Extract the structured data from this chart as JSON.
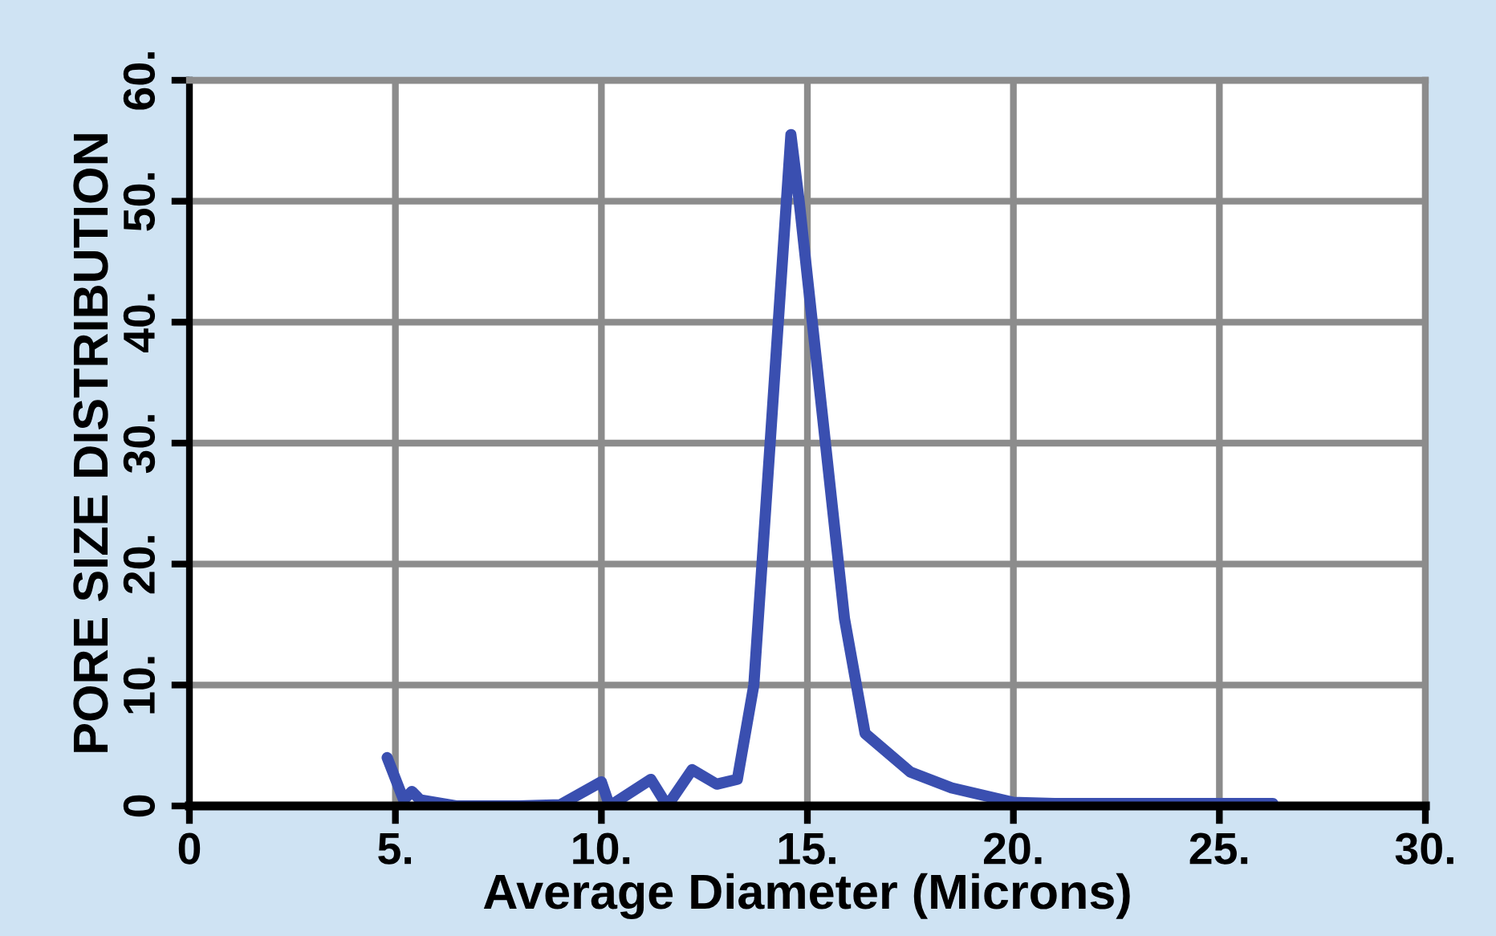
{
  "chart_data": {
    "type": "line",
    "xlabel": "Average Diameter (Microns)",
    "ylabel": "PORE SIZE DISTRIBUTION",
    "x": [
      4.8,
      5.2,
      5.4,
      5.6,
      6.5,
      8,
      9,
      10,
      10.2,
      11.2,
      11.6,
      12.2,
      12.8,
      13.3,
      13.7,
      14.6,
      14.8,
      15.9,
      16.4,
      17.5,
      18.5,
      20,
      21,
      26.3
    ],
    "series": [
      {
        "color": "#3a4fb0",
        "values": [
          4,
          0.5,
          1.2,
          0.5,
          0,
          0,
          0.1,
          2,
          0,
          2.2,
          0,
          3,
          1.8,
          2.2,
          10,
          55.5,
          50,
          15.5,
          6,
          2.8,
          1.5,
          0.3,
          0.2,
          0.2
        ]
      }
    ],
    "xlim": [
      0,
      30
    ],
    "ylim": [
      0,
      60
    ],
    "xticks": [
      0,
      {
        "value": 5,
        "label": "5."
      },
      {
        "value": 10,
        "label": "10."
      },
      {
        "value": 15,
        "label": "15."
      },
      {
        "value": 20,
        "label": "20."
      },
      {
        "value": 25,
        "label": "25."
      },
      {
        "value": 30,
        "label": "30."
      }
    ],
    "yticks": [
      0,
      {
        "value": 10,
        "label": "10."
      },
      {
        "value": 20,
        "label": "20."
      },
      {
        "value": 30,
        "label": "30."
      },
      {
        "value": 40,
        "label": "40."
      },
      {
        "value": 50,
        "label": "50."
      },
      {
        "value": 60,
        "label": "60."
      }
    ],
    "grid": true,
    "line_style": "solid",
    "marker": "none",
    "legend": false
  }
}
